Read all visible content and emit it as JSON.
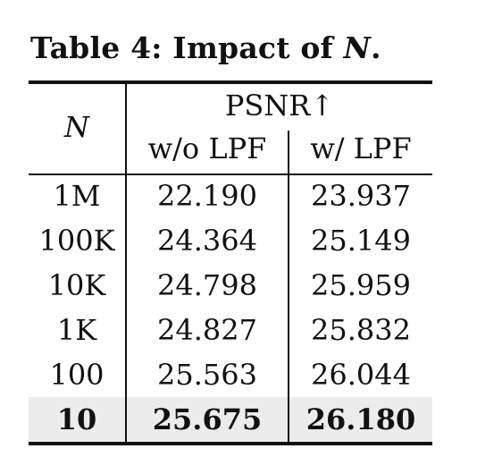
{
  "caption": {
    "prefix": "Table 4: Impact of ",
    "symbol": "N",
    "suffix": "."
  },
  "table": {
    "row_header": "N",
    "group_header": "PSNR↑",
    "columns": [
      "w/o LPF",
      "w/ LPF"
    ],
    "rows": [
      {
        "n": "1M",
        "without_lpf": "22.190",
        "with_lpf": "23.937"
      },
      {
        "n": "100K",
        "without_lpf": "24.364",
        "with_lpf": "25.149"
      },
      {
        "n": "10K",
        "without_lpf": "24.798",
        "with_lpf": "25.959"
      },
      {
        "n": "1K",
        "without_lpf": "24.827",
        "with_lpf": "25.832"
      },
      {
        "n": "100",
        "without_lpf": "25.563",
        "with_lpf": "26.044"
      },
      {
        "n": "10",
        "without_lpf": "25.675",
        "with_lpf": "26.180"
      }
    ],
    "highlighted_row": "10",
    "highlight_color": "#ececec"
  }
}
